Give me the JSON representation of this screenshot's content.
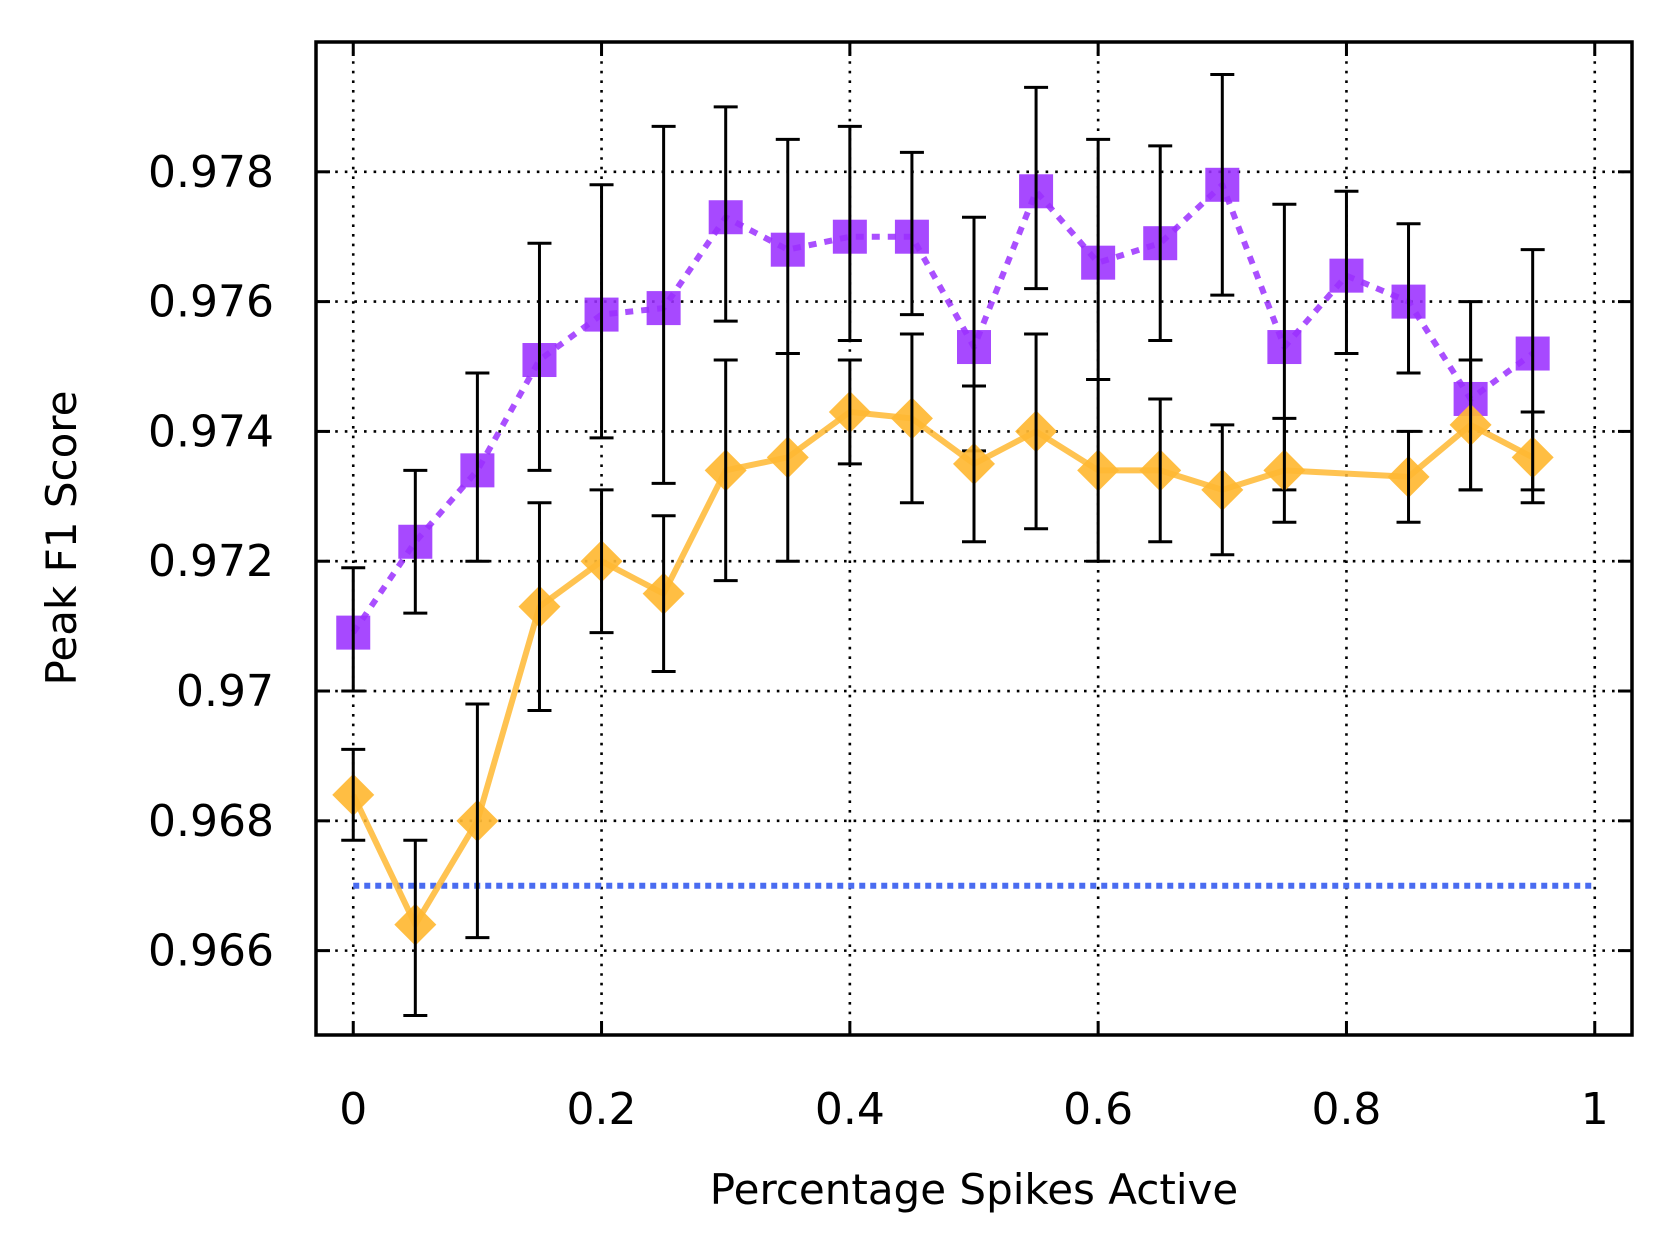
{
  "chart_data": {
    "type": "line",
    "title": "",
    "xlabel": "Percentage Spikes Active",
    "ylabel": "Peak F1 Score",
    "xlim": [
      -0.03,
      1.03
    ],
    "ylim": [
      0.9647,
      0.98
    ],
    "grid": true,
    "x_ticks": [
      0,
      0.2,
      0.4,
      0.6,
      0.8,
      1
    ],
    "x_tick_labels": [
      "0",
      "0.2",
      "0.4",
      "0.6",
      "0.8",
      "1"
    ],
    "y_ticks": [
      0.966,
      0.968,
      0.97,
      0.972,
      0.974,
      0.976,
      0.978
    ],
    "y_tick_labels": [
      "0.966",
      "0.968",
      "0.97",
      "0.972",
      "0.974",
      "0.976",
      "0.978"
    ],
    "series": [
      {
        "name": "purple-squares",
        "color": "#9B30FF",
        "marker": "square",
        "line": "dotted",
        "x": [
          0,
          0.05,
          0.1,
          0.15,
          0.2,
          0.25,
          0.3,
          0.35,
          0.4,
          0.45,
          0.5,
          0.55,
          0.6,
          0.65,
          0.7,
          0.75,
          0.8,
          0.85,
          0.9,
          0.95
        ],
        "y": [
          0.9709,
          0.9723,
          0.9734,
          0.9751,
          0.9758,
          0.9759,
          0.9773,
          0.9768,
          0.977,
          0.977,
          0.9753,
          0.9777,
          0.9766,
          0.9769,
          0.9778,
          0.9753,
          0.9764,
          0.976,
          0.9745,
          0.9752
        ],
        "err_low": [
          0.97,
          0.9712,
          0.972,
          0.9734,
          0.9739,
          0.9732,
          0.9757,
          0.9752,
          0.9754,
          0.9758,
          0.9737,
          0.9762,
          0.9748,
          0.9754,
          0.9761,
          0.9731,
          0.9752,
          0.9749,
          0.9731,
          0.9731
        ],
        "err_high": [
          0.9719,
          0.9734,
          0.9749,
          0.9769,
          0.9778,
          0.9787,
          0.979,
          0.9785,
          0.9787,
          0.9783,
          0.9773,
          0.9793,
          0.9785,
          0.9784,
          0.9795,
          0.9775,
          0.9777,
          0.9772,
          0.976,
          0.9768
        ]
      },
      {
        "name": "orange-diamonds",
        "color": "#FFB833",
        "marker": "diamond",
        "line": "solid",
        "x": [
          0,
          0.05,
          0.1,
          0.15,
          0.2,
          0.25,
          0.3,
          0.35,
          0.4,
          0.45,
          0.5,
          0.55,
          0.6,
          0.65,
          0.7,
          0.75,
          0.85,
          0.9,
          0.95
        ],
        "y": [
          0.9684,
          0.9664,
          0.968,
          0.9713,
          0.972,
          0.9715,
          0.9734,
          0.9736,
          0.9743,
          0.9742,
          0.9735,
          0.974,
          0.9734,
          0.9734,
          0.9731,
          0.9734,
          0.9733,
          0.9741,
          0.9736
        ],
        "err_low": [
          0.9677,
          0.965,
          0.9662,
          0.9697,
          0.9709,
          0.9703,
          0.9717,
          0.972,
          0.9735,
          0.9729,
          0.9723,
          0.9725,
          0.972,
          0.9723,
          0.9721,
          0.9726,
          0.9726,
          0.9731,
          0.9729
        ],
        "err_high": [
          0.9691,
          0.9677,
          0.9698,
          0.9729,
          0.9731,
          0.9727,
          0.9751,
          0.9752,
          0.9751,
          0.9755,
          0.9747,
          0.9755,
          0.9748,
          0.9745,
          0.9741,
          0.9742,
          0.974,
          0.9751,
          0.9743
        ]
      },
      {
        "name": "baseline",
        "color": "#4A6CF0",
        "marker": "none",
        "line": "dotted",
        "x": [
          0,
          1
        ],
        "y": [
          0.967,
          0.967
        ]
      }
    ]
  }
}
